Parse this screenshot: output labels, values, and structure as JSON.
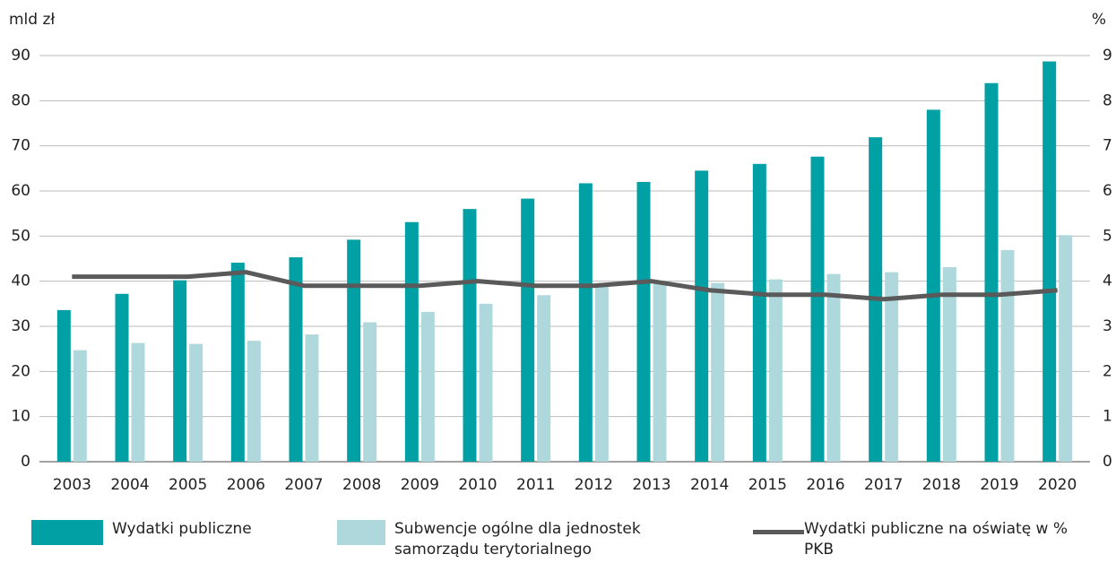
{
  "chart_data": {
    "type": "bar_line",
    "y_label": "mld zł",
    "y2_label": "%",
    "categories": [
      "2003",
      "2004",
      "2005",
      "2006",
      "2007",
      "2008",
      "2009",
      "2010",
      "2011",
      "2012",
      "2013",
      "2014",
      "2015",
      "2016",
      "2017",
      "2018",
      "2019",
      "2020"
    ],
    "series": [
      {
        "name": "Wydatki publiczne",
        "color": "#00a0a4",
        "type": "bar",
        "values": [
          33.6,
          37.2,
          40.2,
          44.1,
          45.3,
          49.2,
          53.1,
          56.0,
          58.3,
          61.7,
          62.0,
          64.5,
          66.0,
          67.6,
          71.9,
          78.0,
          83.9,
          88.7
        ]
      },
      {
        "name": "Subwencje ogólne dla jednostek samorządu terytorialnego",
        "color": "#aed8dc",
        "type": "bar",
        "values": [
          24.7,
          26.3,
          26.1,
          26.8,
          28.2,
          30.9,
          33.2,
          35.0,
          36.9,
          38.9,
          39.8,
          39.6,
          40.4,
          41.6,
          42.0,
          43.1,
          46.9,
          50.2
        ]
      },
      {
        "name": "Wydatki publiczne na oświatę w % PKB",
        "color": "#5a5a5a",
        "type": "line",
        "axis": "y2",
        "values": [
          4.1,
          4.1,
          4.1,
          4.2,
          3.9,
          3.9,
          3.9,
          4.0,
          3.9,
          3.9,
          4.0,
          3.8,
          3.7,
          3.7,
          3.6,
          3.7,
          3.7,
          3.8
        ]
      }
    ],
    "ylim": [
      0,
      90
    ],
    "yticks": [
      0,
      10,
      20,
      30,
      40,
      50,
      60,
      70,
      80,
      90
    ],
    "y2lim": [
      0,
      9
    ],
    "y2ticks": [
      0,
      1,
      2,
      3,
      4,
      5,
      6,
      7,
      8,
      9
    ],
    "grid": true
  }
}
